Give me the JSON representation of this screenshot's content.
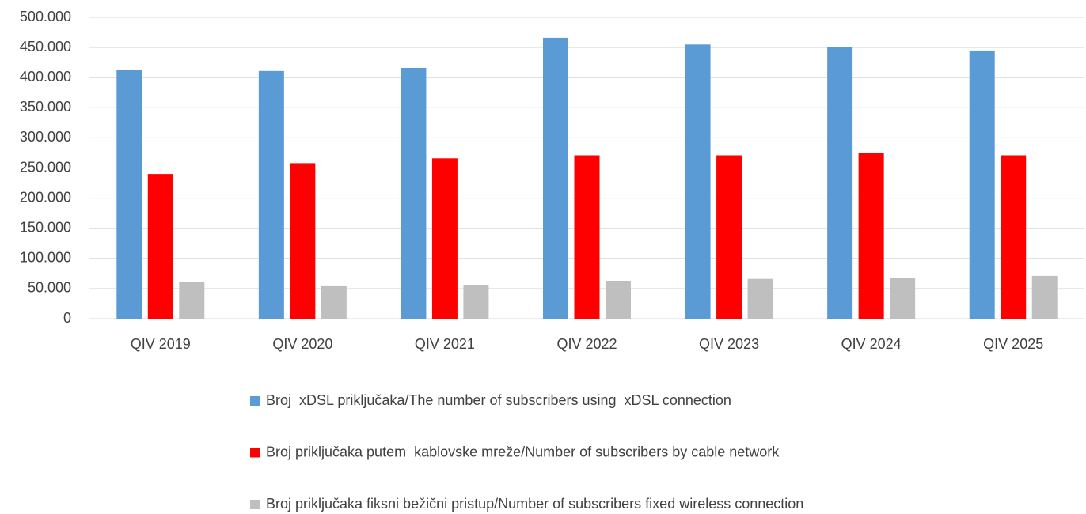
{
  "chart_data": {
    "type": "bar",
    "categories": [
      "QIV 2019",
      "QIV 2020",
      "QIV 2021",
      "QIV 2022",
      "QIV 2023",
      "QIV 2024",
      "QIV 2025"
    ],
    "series": [
      {
        "name": "Broj  xDSL priključaka/The number of subscribers using  xDSL connection",
        "color": "#5b9bd5",
        "values": [
          413000,
          411000,
          416000,
          466000,
          455000,
          451000,
          445000
        ]
      },
      {
        "name": "Broj priključaka putem  kablovske mreže/Number of subscribers by cable network",
        "color": "#ff0000",
        "values": [
          240000,
          258000,
          266000,
          271000,
          271000,
          275000,
          271000
        ]
      },
      {
        "name": "Broj priključaka fiksni bežični pristup/Number of subscribers fixed wireless connection",
        "color": "#bfbfbf",
        "values": [
          61000,
          54000,
          56000,
          63000,
          66000,
          68000,
          71000
        ]
      }
    ],
    "ylim": [
      0,
      500000
    ],
    "yticks": [
      0,
      {
        "value": 50000,
        "label": "50.000"
      },
      {
        "value": 100000,
        "label": "100.000"
      },
      {
        "value": 150000,
        "label": "150.000"
      },
      {
        "value": 200000,
        "label": "200.000"
      },
      {
        "value": 250000,
        "label": "250.000"
      },
      {
        "value": 300000,
        "label": "300.000"
      },
      {
        "value": 350000,
        "label": "350.000"
      },
      {
        "value": 400000,
        "label": "400.000"
      },
      {
        "value": 450000,
        "label": "450.000"
      },
      {
        "value": 500000,
        "label": "500.000"
      }
    ],
    "grid": true,
    "legend": "bottom"
  }
}
